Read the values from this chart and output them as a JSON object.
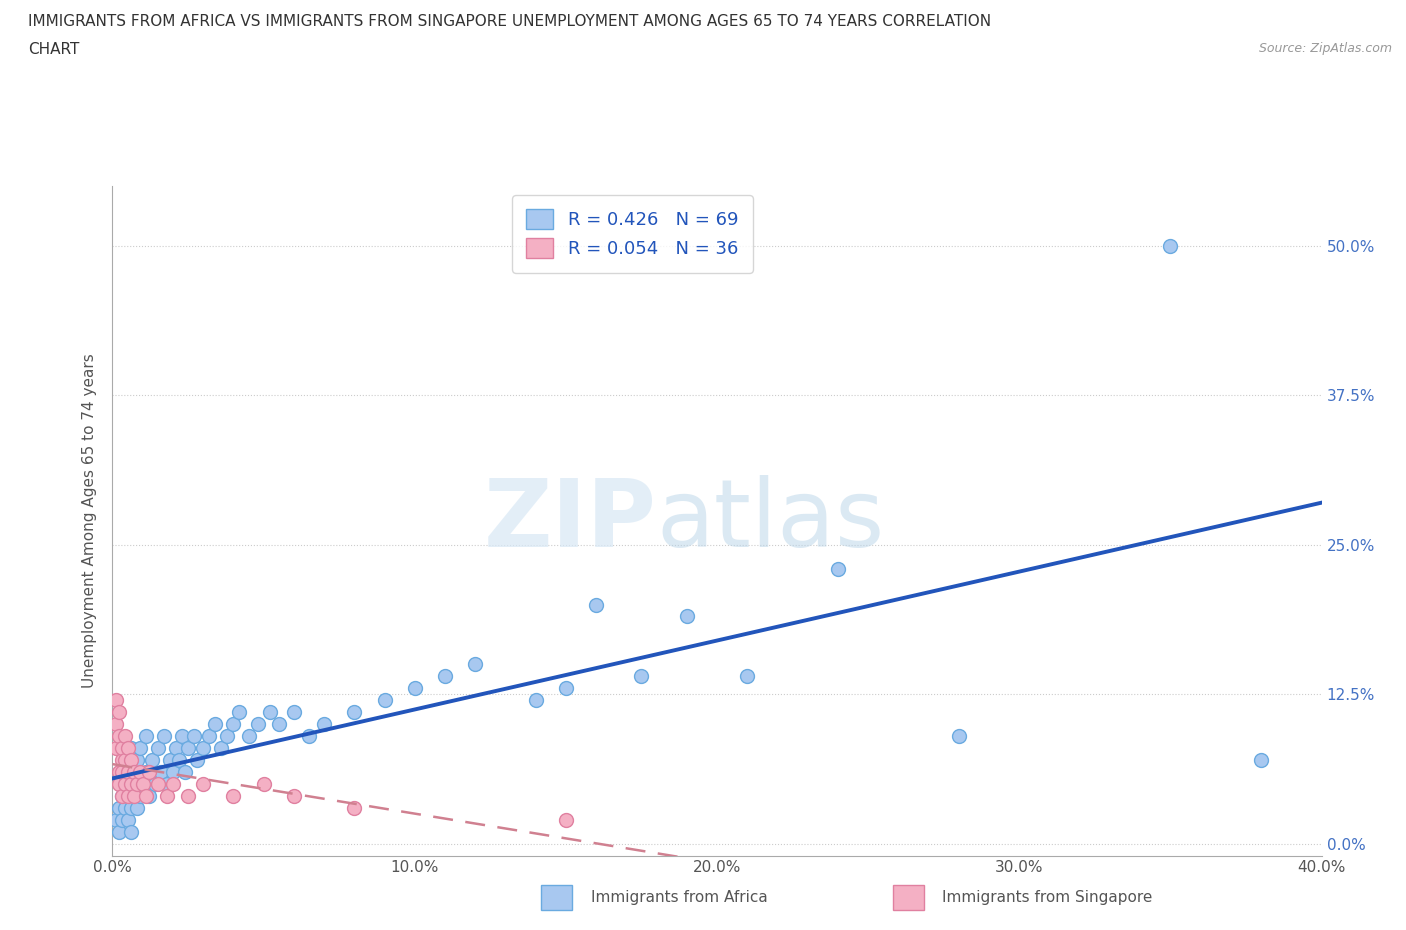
{
  "title_line1": "IMMIGRANTS FROM AFRICA VS IMMIGRANTS FROM SINGAPORE UNEMPLOYMENT AMONG AGES 65 TO 74 YEARS CORRELATION",
  "title_line2": "CHART",
  "source": "Source: ZipAtlas.com",
  "ylabel": "Unemployment Among Ages 65 to 74 years",
  "xlim": [
    0.0,
    0.4
  ],
  "ylim": [
    -0.01,
    0.55
  ],
  "yticks": [
    0.0,
    0.125,
    0.25,
    0.375,
    0.5
  ],
  "ytick_labels": [
    "0.0%",
    "12.5%",
    "25.0%",
    "37.5%",
    "50.0%"
  ],
  "xticks": [
    0.0,
    0.1,
    0.2,
    0.3,
    0.4
  ],
  "xtick_labels": [
    "0.0%",
    "10.0%",
    "20.0%",
    "30.0%",
    "40.0%"
  ],
  "africa_color": "#a8c8f0",
  "africa_edge": "#6aaae0",
  "singapore_color": "#f4b0c4",
  "singapore_edge": "#e080a0",
  "africa_R": 0.426,
  "africa_N": 69,
  "singapore_R": 0.054,
  "singapore_N": 36,
  "legend_label_africa": "Immigrants from Africa",
  "legend_label_singapore": "Immigrants from Singapore",
  "watermark_zip": "ZIP",
  "watermark_atlas": "atlas",
  "africa_line_color": "#2255bb",
  "singapore_line_color": "#d08090",
  "africa_x": [
    0.001,
    0.002,
    0.002,
    0.003,
    0.003,
    0.003,
    0.004,
    0.004,
    0.005,
    0.005,
    0.005,
    0.006,
    0.006,
    0.006,
    0.006,
    0.007,
    0.007,
    0.008,
    0.008,
    0.009,
    0.009,
    0.01,
    0.011,
    0.011,
    0.012,
    0.013,
    0.014,
    0.015,
    0.016,
    0.017,
    0.018,
    0.019,
    0.02,
    0.021,
    0.022,
    0.023,
    0.024,
    0.025,
    0.027,
    0.028,
    0.03,
    0.032,
    0.034,
    0.036,
    0.038,
    0.04,
    0.042,
    0.045,
    0.048,
    0.052,
    0.055,
    0.06,
    0.065,
    0.07,
    0.08,
    0.09,
    0.1,
    0.11,
    0.12,
    0.14,
    0.15,
    0.16,
    0.175,
    0.19,
    0.21,
    0.24,
    0.28,
    0.35,
    0.38
  ],
  "africa_y": [
    0.02,
    0.03,
    0.01,
    0.04,
    0.02,
    0.05,
    0.03,
    0.06,
    0.02,
    0.04,
    0.07,
    0.03,
    0.05,
    0.08,
    0.01,
    0.04,
    0.06,
    0.03,
    0.07,
    0.04,
    0.08,
    0.05,
    0.06,
    0.09,
    0.04,
    0.07,
    0.05,
    0.08,
    0.06,
    0.09,
    0.05,
    0.07,
    0.06,
    0.08,
    0.07,
    0.09,
    0.06,
    0.08,
    0.09,
    0.07,
    0.08,
    0.09,
    0.1,
    0.08,
    0.09,
    0.1,
    0.11,
    0.09,
    0.1,
    0.11,
    0.1,
    0.11,
    0.09,
    0.1,
    0.11,
    0.12,
    0.13,
    0.14,
    0.15,
    0.12,
    0.13,
    0.2,
    0.14,
    0.19,
    0.14,
    0.23,
    0.09,
    0.5,
    0.07
  ],
  "singapore_x": [
    0.001,
    0.001,
    0.001,
    0.002,
    0.002,
    0.002,
    0.002,
    0.003,
    0.003,
    0.003,
    0.003,
    0.004,
    0.004,
    0.004,
    0.005,
    0.005,
    0.005,
    0.006,
    0.006,
    0.007,
    0.007,
    0.008,
    0.009,
    0.01,
    0.011,
    0.012,
    0.015,
    0.018,
    0.02,
    0.025,
    0.03,
    0.04,
    0.05,
    0.06,
    0.08,
    0.15
  ],
  "singapore_y": [
    0.1,
    0.08,
    0.12,
    0.06,
    0.09,
    0.05,
    0.11,
    0.07,
    0.04,
    0.08,
    0.06,
    0.05,
    0.09,
    0.07,
    0.06,
    0.04,
    0.08,
    0.05,
    0.07,
    0.06,
    0.04,
    0.05,
    0.06,
    0.05,
    0.04,
    0.06,
    0.05,
    0.04,
    0.05,
    0.04,
    0.05,
    0.04,
    0.05,
    0.04,
    0.03,
    0.02
  ]
}
